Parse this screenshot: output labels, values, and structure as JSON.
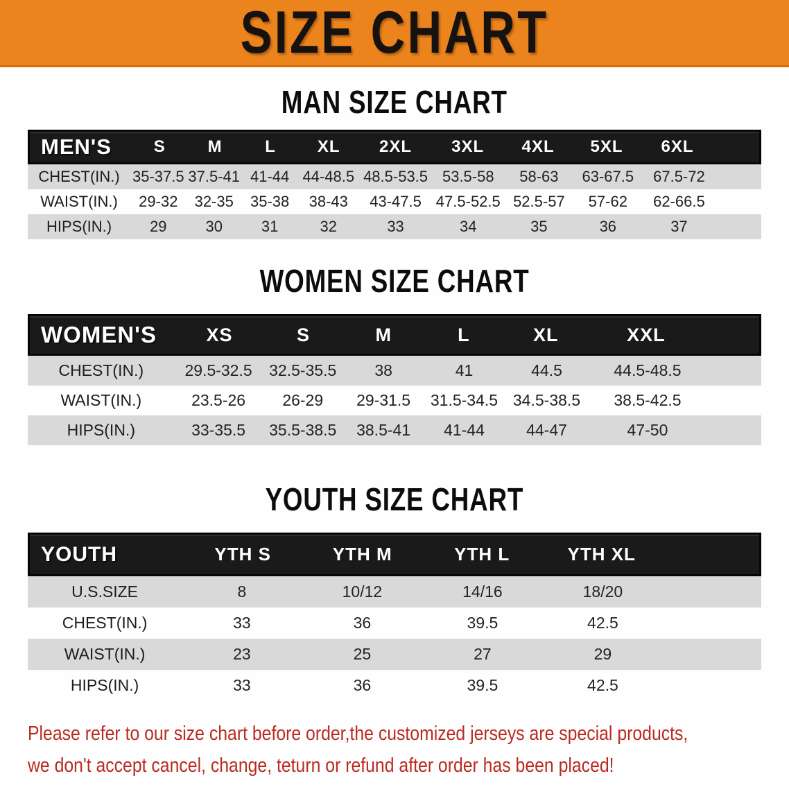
{
  "banner": {
    "title": "SIZE CHART"
  },
  "colors": {
    "banner_bg": "#EC841D",
    "header_bar": "#1A1A1A",
    "row_gray": "#D9D9D9",
    "note_red": "#B92B21"
  },
  "men": {
    "heading": "MAN SIZE CHART",
    "header": {
      "label": "MEN'S",
      "sizes": [
        "S",
        "M",
        "L",
        "XL",
        "2XL",
        "3XL",
        "4XL",
        "5XL",
        "6XL"
      ]
    },
    "rows": [
      {
        "label": "CHEST(IN.)",
        "values": [
          "35-37.5",
          "37.5-41",
          "41-44",
          "44-48.5",
          "48.5-53.5",
          "53.5-58",
          "58-63",
          "63-67.5",
          "67.5-72"
        ]
      },
      {
        "label": "WAIST(IN.)",
        "values": [
          "29-32",
          "32-35",
          "35-38",
          "38-43",
          "43-47.5",
          "47.5-52.5",
          "52.5-57",
          "57-62",
          "62-66.5"
        ]
      },
      {
        "label": "HIPS(IN.)",
        "values": [
          "29",
          "30",
          "31",
          "32",
          "33",
          "34",
          "35",
          "36",
          "37"
        ]
      }
    ]
  },
  "women": {
    "heading": "WOMEN SIZE CHART",
    "header": {
      "label": "WOMEN'S",
      "sizes": [
        "XS",
        "S",
        "M",
        "L",
        "XL",
        "XXL"
      ]
    },
    "rows": [
      {
        "label": "CHEST(IN.)",
        "values": [
          "29.5-32.5",
          "32.5-35.5",
          "38",
          "41",
          "44.5",
          "44.5-48.5"
        ]
      },
      {
        "label": "WAIST(IN.)",
        "values": [
          "23.5-26",
          "26-29",
          "29-31.5",
          "31.5-34.5",
          "34.5-38.5",
          "38.5-42.5"
        ]
      },
      {
        "label": "HIPS(IN.)",
        "values": [
          "33-35.5",
          "35.5-38.5",
          "38.5-41",
          "41-44",
          "44-47",
          "47-50"
        ]
      }
    ]
  },
  "youth": {
    "heading": "YOUTH SIZE CHART",
    "header": {
      "label": "YOUTH",
      "sizes": [
        "YTH S",
        "YTH M",
        "YTH L",
        "YTH XL"
      ]
    },
    "rows": [
      {
        "label": "U.S.SIZE",
        "values": [
          "8",
          "10/12",
          "14/16",
          "18/20"
        ]
      },
      {
        "label": "CHEST(IN.)",
        "values": [
          "33",
          "36",
          "39.5",
          "42.5"
        ]
      },
      {
        "label": "WAIST(IN.)",
        "values": [
          "23",
          "25",
          "27",
          "29"
        ]
      },
      {
        "label": "HIPS(IN.)",
        "values": [
          "33",
          "36",
          "39.5",
          "42.5"
        ]
      }
    ]
  },
  "note": {
    "line1": "Please refer to our size chart before order,the customized jerseys are special products,",
    "line2": "we don't accept cancel, change, teturn or refund after order has been placed!"
  }
}
